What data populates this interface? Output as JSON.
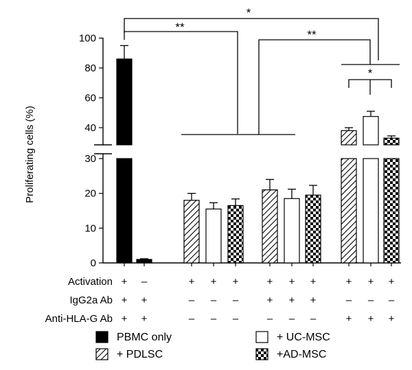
{
  "chart_data": {
    "type": "bar",
    "ylabel": "Proliferating cells (%)",
    "y_axis_break": [
      30,
      35
    ],
    "ylim_lower": [
      0,
      30
    ],
    "ylim_upper": [
      35,
      100
    ],
    "yticks_lower": [
      "0",
      "10",
      "20",
      "30"
    ],
    "yticks_upper": [
      "40",
      "60",
      "80",
      "100"
    ],
    "bars": [
      {
        "series": "PBMC only",
        "value": 86,
        "error": 9
      },
      {
        "series": "PBMC only",
        "value": 1,
        "error": 0.2
      },
      {
        "series": "+ PDLSC",
        "value": 18,
        "error": 2
      },
      {
        "series": "+ UC-MSC",
        "value": 15.5,
        "error": 1.8
      },
      {
        "series": "+AD-MSC",
        "value": 16.5,
        "error": 1.9
      },
      {
        "series": "+ PDLSC",
        "value": 21,
        "error": 3
      },
      {
        "series": "+ UC-MSC",
        "value": 18.5,
        "error": 2.7
      },
      {
        "series": "+AD-MSC",
        "value": 19.5,
        "error": 2.8
      },
      {
        "series": "+ PDLSC",
        "value": 38,
        "error": 2
      },
      {
        "series": "+ UC-MSC",
        "value": 47.5,
        "error": 3.5
      },
      {
        "series": "+AD-MSC",
        "value": 33,
        "error": 1.5
      }
    ],
    "condition_rows": [
      {
        "label": "Activation",
        "values": [
          "+",
          "–",
          "+",
          "+",
          "+",
          "+",
          "+",
          "+",
          "+",
          "+",
          "+"
        ]
      },
      {
        "label": "IgG2a Ab",
        "values": [
          "+",
          "+",
          "–",
          "–",
          "–",
          "+",
          "+",
          "+",
          "–",
          "–",
          "–"
        ]
      },
      {
        "label": "Anti-HLA-G Ab",
        "values": [
          "+",
          "+",
          "–",
          "–",
          "–",
          "–",
          "–",
          "–",
          "+",
          "+",
          "+"
        ]
      }
    ],
    "significance": [
      "*",
      "**",
      "**",
      "*"
    ],
    "legend": [
      {
        "name": "PBMC only",
        "pattern": "solid"
      },
      {
        "name": "+ UC-MSC",
        "pattern": "open"
      },
      {
        "name": "+ PDLSC",
        "pattern": "hatched"
      },
      {
        "name": "+AD-MSC",
        "pattern": "checkered"
      }
    ],
    "legend_position": "bottom"
  }
}
